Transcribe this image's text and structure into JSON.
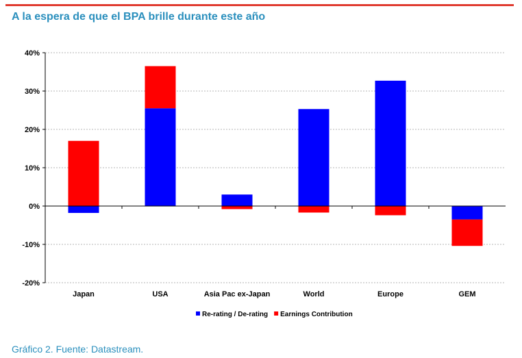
{
  "header": {
    "title": "A la espera de que el BPA brille durante este año"
  },
  "colors": {
    "accent_rule": "#e03c31",
    "heading": "#2a8fbd",
    "rerating": "#0000ff",
    "earnings": "#ff0000"
  },
  "chart_data": {
    "type": "bar",
    "stacked": true,
    "title": "",
    "xlabel": "",
    "ylabel": "",
    "ylim": [
      -20,
      40
    ],
    "yticks": [
      -20,
      -10,
      0,
      10,
      20,
      30,
      40
    ],
    "ytick_labels": [
      "-20%",
      "-10%",
      "0%",
      "10%",
      "20%",
      "30%",
      "40%"
    ],
    "grid": true,
    "legend_position": "bottom",
    "categories": [
      "Japan",
      "USA",
      "Asia Pac ex-Japan",
      "World",
      "Europe",
      "GEM"
    ],
    "series": [
      {
        "name": "Re-rating / De-rating",
        "color": "#0000ff",
        "values": [
          -1.8,
          25.5,
          3.0,
          25.3,
          32.7,
          -3.5
        ]
      },
      {
        "name": "Earnings Contribution",
        "color": "#ff0000",
        "values": [
          17.0,
          11.0,
          -0.8,
          -1.7,
          -2.4,
          -6.9
        ]
      }
    ]
  },
  "footer": {
    "caption": "Gráfico 2. Fuente: Datastream."
  }
}
